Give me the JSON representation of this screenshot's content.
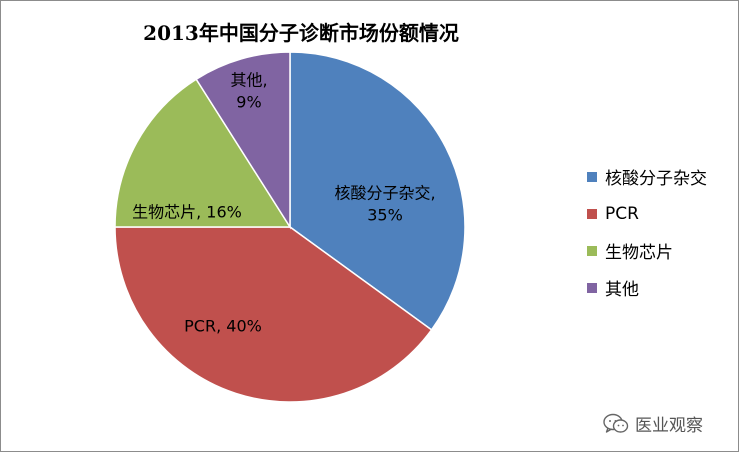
{
  "chart_data": {
    "type": "pie",
    "title": "2013年中国分子诊断市场份额情况",
    "categories": [
      "核酸分子杂交",
      "PCR",
      "生物芯片",
      "其他"
    ],
    "values": [
      35,
      40,
      16,
      9
    ],
    "unit": "%",
    "data_labels": [
      [
        "核酸分子杂交,",
        "35%"
      ],
      [
        "PCR, 40%"
      ],
      [
        "生物芯片, 16%"
      ],
      [
        "其他,",
        "9%"
      ]
    ],
    "colors": [
      "#4f81bd",
      "#c0504d",
      "#9bbb59",
      "#8064a2"
    ],
    "legend": {
      "position": "right",
      "entries": [
        "核酸分子杂交",
        "PCR",
        "生物芯片",
        "其他"
      ]
    },
    "start_angle": "12 o'clock",
    "direction": "clockwise"
  },
  "watermark": {
    "icon": "wechat-bubble-icon",
    "text": "医业观察"
  }
}
